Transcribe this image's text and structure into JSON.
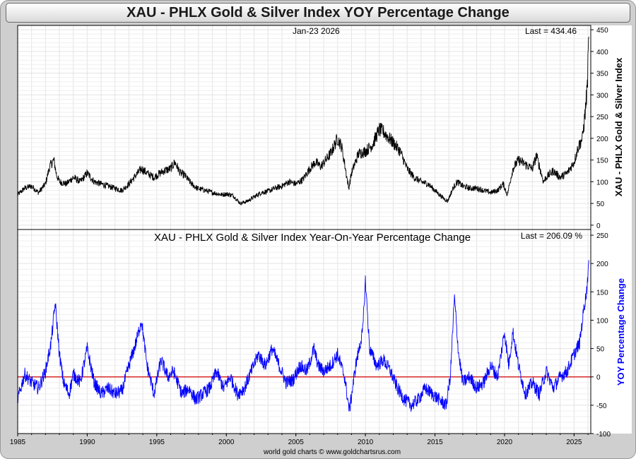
{
  "title": "XAU - PHLX Gold & Silver Index YOY Percentage Change",
  "credit": "world gold charts © www.goldchartsrus.com",
  "chart_data": [
    {
      "type": "line",
      "name": "XAU price panel",
      "date_label": "Jan-23  2026",
      "last_label": "Last = 434.46",
      "last_value": 434.46,
      "ylabel": "XAU - PHLX Gold & Silver Index",
      "ylim": [
        -10,
        460
      ],
      "yticks": [
        0,
        50,
        100,
        150,
        200,
        250,
        300,
        350,
        400,
        450
      ],
      "color": "#000000",
      "series": [
        {
          "name": "XAU",
          "x": [
            1985.0,
            1985.5,
            1986.0,
            1986.5,
            1987.0,
            1987.3,
            1987.6,
            1987.8,
            1988.0,
            1988.5,
            1989.0,
            1989.5,
            1990.0,
            1990.5,
            1991.0,
            1991.5,
            1992.0,
            1992.5,
            1993.0,
            1993.5,
            1993.9,
            1994.3,
            1994.8,
            1995.0,
            1995.5,
            1996.0,
            1996.3,
            1996.7,
            1997.0,
            1997.5,
            1997.9,
            1998.5,
            1999.0,
            1999.7,
            2000.0,
            2000.5,
            2001.0,
            2001.5,
            2002.0,
            2002.5,
            2003.0,
            2003.5,
            2004.0,
            2004.5,
            2005.0,
            2005.5,
            2006.0,
            2006.4,
            2006.8,
            2007.5,
            2008.0,
            2008.3,
            2008.8,
            2009.0,
            2009.5,
            2010.0,
            2010.5,
            2011.0,
            2011.3,
            2011.7,
            2012.0,
            2012.5,
            2013.0,
            2013.5,
            2014.0,
            2014.5,
            2015.0,
            2015.5,
            2015.9,
            2016.3,
            2016.6,
            2017.0,
            2017.5,
            2018.0,
            2018.5,
            2019.0,
            2019.5,
            2019.9,
            2020.2,
            2020.6,
            2021.0,
            2021.5,
            2022.0,
            2022.3,
            2022.8,
            2023.0,
            2023.5,
            2024.0,
            2024.5,
            2025.0,
            2025.3,
            2025.6,
            2025.8,
            2025.95,
            2026.06
          ],
          "y": [
            70,
            85,
            90,
            75,
            95,
            135,
            150,
            115,
            100,
            95,
            110,
            100,
            120,
            100,
            95,
            90,
            85,
            80,
            95,
            115,
            130,
            120,
            110,
            115,
            125,
            130,
            145,
            120,
            115,
            95,
            85,
            80,
            75,
            70,
            72,
            68,
            50,
            55,
            65,
            75,
            78,
            85,
            90,
            100,
            95,
            105,
            130,
            145,
            135,
            165,
            200,
            180,
            85,
            120,
            165,
            170,
            185,
            220,
            215,
            200,
            190,
            170,
            130,
            110,
            100,
            95,
            80,
            65,
            55,
            85,
            100,
            90,
            85,
            85,
            80,
            75,
            80,
            95,
            70,
            130,
            150,
            140,
            130,
            160,
            100,
            110,
            125,
            110,
            120,
            145,
            180,
            200,
            260,
            320,
            434
          ]
        }
      ]
    },
    {
      "type": "line",
      "name": "YOY percentage change panel",
      "subtitle": "XAU - PHLX Gold & Silver Index Year-On-Year Percentage Change",
      "last_label": "Last = 206.09 %",
      "last_value": 206.09,
      "ylabel": "YOY Percentage Change",
      "ylim": [
        -100,
        260
      ],
      "yticks": [
        -100,
        -50,
        0,
        50,
        100,
        150,
        200,
        250
      ],
      "zero_line_color": "#d00000",
      "color": "#0000ff",
      "series": [
        {
          "name": "YOY %",
          "x": [
            1985.0,
            1985.5,
            1986.0,
            1986.5,
            1987.0,
            1987.4,
            1987.7,
            1988.0,
            1988.3,
            1988.7,
            1989.0,
            1989.5,
            1990.0,
            1990.5,
            1991.0,
            1991.5,
            1992.0,
            1992.5,
            1993.0,
            1993.5,
            1993.9,
            1994.3,
            1994.8,
            1995.3,
            1995.8,
            1996.2,
            1996.8,
            1997.3,
            1997.8,
            1998.3,
            1998.8,
            1999.3,
            1999.8,
            2000.3,
            2000.8,
            2001.3,
            2001.8,
            2002.3,
            2002.8,
            2003.3,
            2003.8,
            2004.3,
            2004.8,
            2005.3,
            2005.8,
            2006.3,
            2006.6,
            2007.0,
            2007.5,
            2008.0,
            2008.5,
            2008.85,
            2009.3,
            2009.8,
            2010.0,
            2010.3,
            2010.8,
            2011.3,
            2011.8,
            2012.3,
            2012.8,
            2013.3,
            2013.8,
            2014.3,
            2014.8,
            2015.3,
            2015.8,
            2016.1,
            2016.4,
            2016.7,
            2017.0,
            2017.5,
            2018.0,
            2018.5,
            2019.0,
            2019.5,
            2020.0,
            2020.3,
            2020.6,
            2021.0,
            2021.5,
            2022.0,
            2022.5,
            2023.0,
            2023.5,
            2024.0,
            2024.5,
            2025.0,
            2025.4,
            2025.7,
            2025.9,
            2026.06
          ],
          "y": [
            -40,
            5,
            -10,
            -20,
            10,
            60,
            130,
            40,
            -10,
            -30,
            5,
            -10,
            50,
            -10,
            -30,
            -20,
            -30,
            -25,
            20,
            60,
            100,
            20,
            -30,
            30,
            0,
            10,
            -30,
            -20,
            -40,
            -30,
            -20,
            10,
            -20,
            0,
            -30,
            -20,
            10,
            40,
            20,
            50,
            20,
            -10,
            -5,
            20,
            10,
            50,
            20,
            10,
            20,
            40,
            0,
            -60,
            20,
            80,
            170,
            50,
            20,
            30,
            10,
            -20,
            -40,
            -50,
            -40,
            -20,
            -30,
            -40,
            -50,
            0,
            140,
            40,
            -10,
            0,
            -20,
            -10,
            20,
            0,
            80,
            20,
            80,
            20,
            -30,
            -10,
            -30,
            10,
            -20,
            0,
            10,
            40,
            60,
            120,
            150,
            206
          ]
        }
      ]
    }
  ],
  "x_axis": {
    "xlim": [
      1985.0,
      2026.2
    ],
    "ticks": [
      1985,
      1990,
      1995,
      2000,
      2005,
      2010,
      2015,
      2020,
      2025
    ],
    "labels": [
      "1985",
      "1990",
      "1995",
      "2000",
      "2005",
      "2010",
      "2015",
      "2020",
      "2025"
    ]
  }
}
